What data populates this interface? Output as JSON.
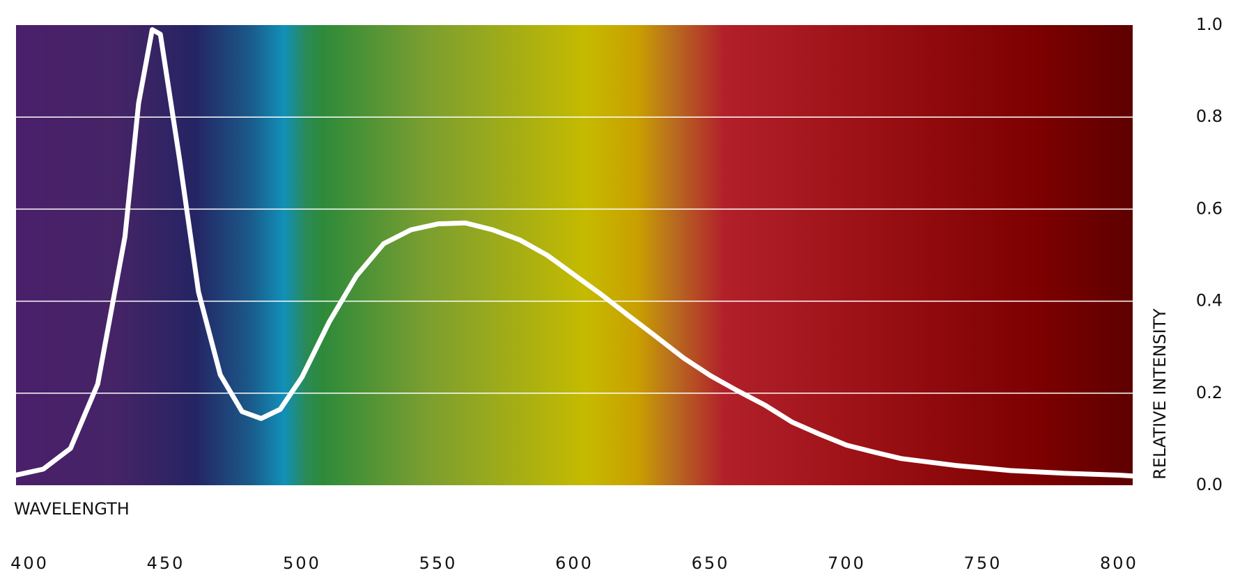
{
  "chart_data": {
    "type": "line",
    "x_label": "WAVELENGTH",
    "y_label": "RELATIVE INTENSITY",
    "x": [
      395,
      405,
      415,
      425,
      435,
      440,
      445,
      448,
      455,
      462,
      470,
      478,
      485,
      492,
      500,
      510,
      520,
      530,
      540,
      550,
      560,
      570,
      580,
      590,
      600,
      610,
      620,
      630,
      640,
      650,
      660,
      670,
      680,
      690,
      700,
      710,
      720,
      740,
      760,
      780,
      800,
      805
    ],
    "series": [
      {
        "color": "#ffffff",
        "values": [
          0.022,
          0.035,
          0.08,
          0.22,
          0.54,
          0.83,
          0.99,
          0.98,
          0.71,
          0.42,
          0.24,
          0.16,
          0.145,
          0.165,
          0.235,
          0.355,
          0.455,
          0.525,
          0.555,
          0.568,
          0.57,
          0.555,
          0.533,
          0.5,
          0.457,
          0.414,
          0.368,
          0.323,
          0.277,
          0.238,
          0.205,
          0.174,
          0.137,
          0.111,
          0.087,
          0.072,
          0.058,
          0.043,
          0.032,
          0.026,
          0.022,
          0.02
        ]
      }
    ],
    "xlim": [
      395,
      805
    ],
    "xticks": [
      400,
      450,
      500,
      550,
      600,
      650,
      700,
      750,
      800
    ],
    "ylim": [
      0,
      1
    ],
    "yticks": [
      {
        "value": 0,
        "label": "0.0"
      },
      0.2,
      0.4,
      0.6,
      0.8,
      {
        "value": 1,
        "label": "1.0"
      }
    ],
    "grid": true,
    "y_axis_side": "right"
  }
}
